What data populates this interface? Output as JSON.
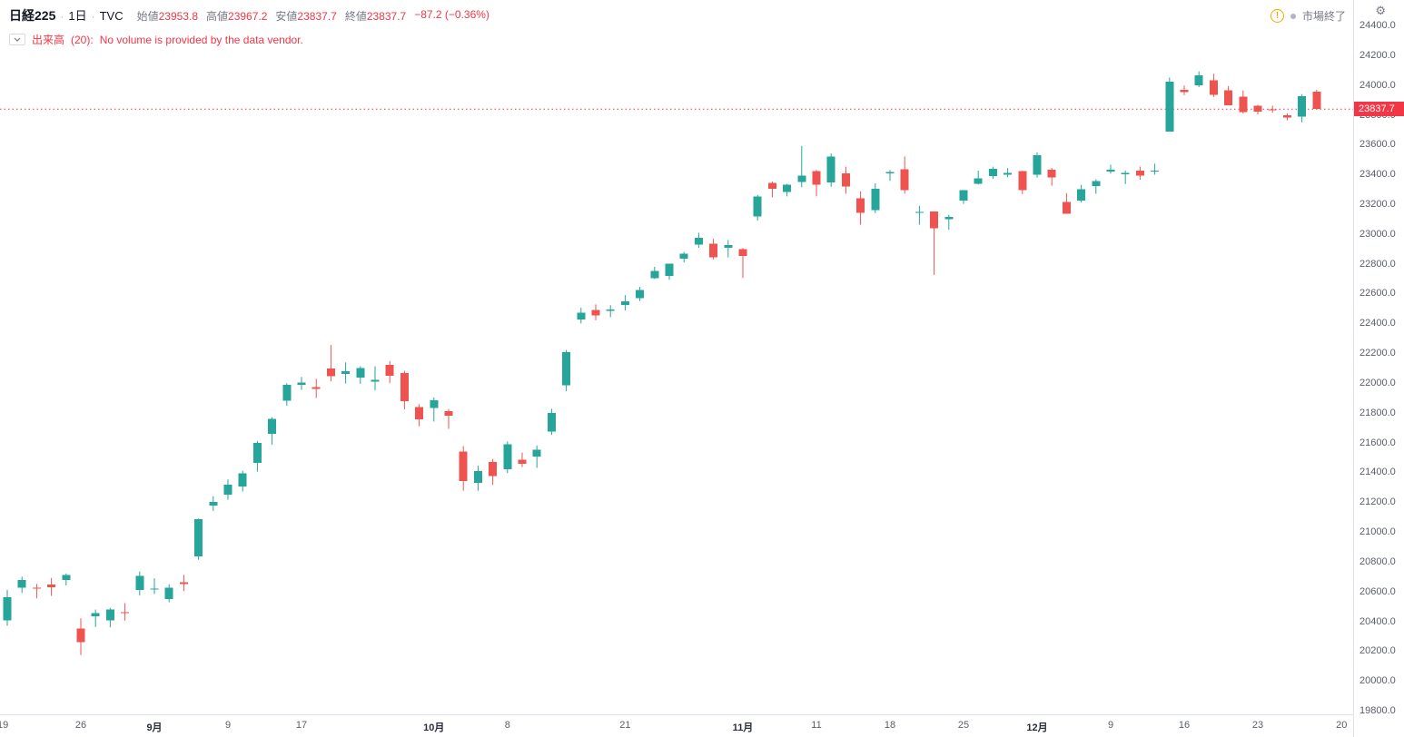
{
  "header": {
    "symbol": "日経225",
    "sep": "·",
    "interval": "1日",
    "exchange": "TVC",
    "ohlc": [
      {
        "label": "始値",
        "value": "23953.8"
      },
      {
        "label": "高値",
        "value": "23967.2"
      },
      {
        "label": "安値",
        "value": "23837.7"
      },
      {
        "label": "終値",
        "value": "23837.7"
      }
    ],
    "change": "−87.2 (−0.36%)",
    "market_status": "市場終了"
  },
  "indicator": {
    "label": "出来高",
    "params": "(20):",
    "message": "No volume is provided by the data vendor."
  },
  "price_label": "23837.7",
  "icons": {
    "warning": "!",
    "gear": "⚙"
  },
  "colors": {
    "up": "#26a69a",
    "down": "#ef5350",
    "text_down": "#f23645",
    "axis_text": "#5a5e6b",
    "badge_bg": "#f23645",
    "warning": "#f7a600"
  },
  "chart_data": {
    "type": "candlestick",
    "title": "日経225 1日 TVC",
    "y_axis": {
      "min": 19800,
      "max": 24400,
      "step": 200,
      "ticks": [
        "24400.0",
        "24200.0",
        "24000.0",
        "23800.0",
        "23600.0",
        "23400.0",
        "23200.0",
        "23000.0",
        "22800.0",
        "22600.0",
        "22400.0",
        "22200.0",
        "22000.0",
        "21800.0",
        "21600.0",
        "21400.0",
        "21200.0",
        "21000.0",
        "20800.0",
        "20600.0",
        "20400.0",
        "20200.0",
        "20000.0",
        "19800.0"
      ]
    },
    "x_ticks": [
      {
        "label": "19",
        "index": -0.3,
        "strong": false
      },
      {
        "label": "26",
        "index": 5,
        "strong": false
      },
      {
        "label": "9月",
        "index": 10,
        "strong": true
      },
      {
        "label": "9",
        "index": 15,
        "strong": false
      },
      {
        "label": "17",
        "index": 20,
        "strong": false
      },
      {
        "label": "10月",
        "index": 29,
        "strong": true
      },
      {
        "label": "8",
        "index": 34,
        "strong": false
      },
      {
        "label": "21",
        "index": 42,
        "strong": false
      },
      {
        "label": "11月",
        "index": 50,
        "strong": true
      },
      {
        "label": "11",
        "index": 55,
        "strong": false
      },
      {
        "label": "18",
        "index": 60,
        "strong": false
      },
      {
        "label": "25",
        "index": 65,
        "strong": false
      },
      {
        "label": "12月",
        "index": 70,
        "strong": true
      },
      {
        "label": "9",
        "index": 75,
        "strong": false
      },
      {
        "label": "16",
        "index": 80,
        "strong": false
      },
      {
        "label": "23",
        "index": 85,
        "strong": false
      },
      {
        "label": "20",
        "index": 90.7,
        "strong": false
      }
    ],
    "last_close": 23837.7,
    "candles": [
      [
        "2019-08-19",
        20405,
        20611,
        20370,
        20563
      ],
      [
        "2019-08-20",
        20625,
        20699,
        20590,
        20677
      ],
      [
        "2019-08-21",
        20625,
        20651,
        20554,
        20618
      ],
      [
        "2019-08-22",
        20647,
        20691,
        20570,
        20628
      ],
      [
        "2019-08-23",
        20677,
        20721,
        20641,
        20711
      ],
      [
        "2019-08-26",
        20351,
        20420,
        20173,
        20261
      ],
      [
        "2019-08-27",
        20432,
        20479,
        20362,
        20456
      ],
      [
        "2019-08-28",
        20406,
        20490,
        20360,
        20479
      ],
      [
        "2019-08-29",
        20462,
        20522,
        20405,
        20460
      ],
      [
        "2019-08-30",
        20609,
        20734,
        20573,
        20704
      ],
      [
        "2019-09-02",
        20620,
        20689,
        20583,
        20620
      ],
      [
        "2019-09-03",
        20550,
        20649,
        20528,
        20625
      ],
      [
        "2019-09-04",
        20662,
        20712,
        20603,
        20649
      ],
      [
        "2019-09-05",
        20836,
        21090,
        20813,
        21086
      ],
      [
        "2019-09-06",
        21177,
        21240,
        21141,
        21200
      ],
      [
        "2019-09-09",
        21250,
        21352,
        21216,
        21318
      ],
      [
        "2019-09-10",
        21305,
        21411,
        21271,
        21392
      ],
      [
        "2019-09-11",
        21464,
        21611,
        21405,
        21597
      ],
      [
        "2019-09-12",
        21659,
        21770,
        21586,
        21760
      ],
      [
        "2019-09-13",
        21880,
        21998,
        21847,
        21988
      ],
      [
        "2019-09-17",
        21988,
        22041,
        21953,
        22001
      ],
      [
        "2019-09-18",
        21972,
        22028,
        21899,
        21961
      ],
      [
        "2019-09-19",
        22098,
        22255,
        22010,
        22044
      ],
      [
        "2019-09-20",
        22060,
        22138,
        21996,
        22079
      ],
      [
        "2019-09-24",
        22035,
        22112,
        21994,
        22099
      ],
      [
        "2019-09-25",
        22008,
        22112,
        21950,
        22020
      ],
      [
        "2019-09-26",
        22121,
        22147,
        21998,
        22048
      ],
      [
        "2019-09-27",
        22068,
        22082,
        21823,
        21879
      ],
      [
        "2019-09-30",
        21837,
        21857,
        21709,
        21756
      ],
      [
        "2019-10-01",
        21831,
        21903,
        21741,
        21885
      ],
      [
        "2019-10-02",
        21810,
        21825,
        21692,
        21779
      ],
      [
        "2019-10-03",
        21538,
        21576,
        21277,
        21342
      ],
      [
        "2019-10-04",
        21329,
        21445,
        21276,
        21410
      ],
      [
        "2019-10-07",
        21468,
        21490,
        21316,
        21375
      ],
      [
        "2019-10-08",
        21421,
        21608,
        21395,
        21588
      ],
      [
        "2019-10-09",
        21486,
        21533,
        21436,
        21456
      ],
      [
        "2019-10-10",
        21507,
        21580,
        21430,
        21552
      ],
      [
        "2019-10-11",
        21672,
        21827,
        21651,
        21799
      ],
      [
        "2019-10-15",
        21985,
        22222,
        21944,
        22207
      ],
      [
        "2019-10-16",
        22427,
        22505,
        22399,
        22473
      ],
      [
        "2019-10-17",
        22490,
        22527,
        22421,
        22452
      ],
      [
        "2019-10-18",
        22483,
        22522,
        22442,
        22493
      ],
      [
        "2019-10-21",
        22524,
        22589,
        22487,
        22549
      ],
      [
        "2019-10-23",
        22568,
        22645,
        22549,
        22625
      ],
      [
        "2019-10-24",
        22702,
        22780,
        22698,
        22751
      ],
      [
        "2019-10-25",
        22717,
        22800,
        22692,
        22800
      ],
      [
        "2019-10-28",
        22834,
        22879,
        22809,
        22867
      ],
      [
        "2019-10-29",
        22929,
        23008,
        22907,
        22974
      ],
      [
        "2019-10-30",
        22936,
        22967,
        22829,
        22843
      ],
      [
        "2019-10-31",
        22907,
        22959,
        22843,
        22927
      ],
      [
        "2019-11-01",
        22898,
        22906,
        22705,
        22851
      ],
      [
        "2019-11-05",
        23118,
        23262,
        23090,
        23252
      ],
      [
        "2019-11-06",
        23343,
        23352,
        23246,
        23304
      ],
      [
        "2019-11-07",
        23283,
        23336,
        23253,
        23330
      ],
      [
        "2019-11-08",
        23350,
        23591,
        23313,
        23392
      ],
      [
        "2019-11-11",
        23422,
        23430,
        23253,
        23332
      ],
      [
        "2019-11-12",
        23345,
        23541,
        23316,
        23520
      ],
      [
        "2019-11-13",
        23407,
        23452,
        23270,
        23320
      ],
      [
        "2019-11-14",
        23240,
        23286,
        23062,
        23142
      ],
      [
        "2019-11-15",
        23160,
        23340,
        23140,
        23303
      ],
      [
        "2019-11-18",
        23407,
        23430,
        23357,
        23417
      ],
      [
        "2019-11-19",
        23433,
        23520,
        23271,
        23293
      ],
      [
        "2019-11-20",
        23148,
        23188,
        23062,
        23149
      ],
      [
        "2019-11-21",
        23151,
        23151,
        22726,
        23039
      ],
      [
        "2019-11-22",
        23100,
        23128,
        23028,
        23113
      ],
      [
        "2019-11-25",
        23224,
        23295,
        23202,
        23293
      ],
      [
        "2019-11-26",
        23337,
        23425,
        23332,
        23373
      ],
      [
        "2019-11-27",
        23390,
        23452,
        23370,
        23438
      ],
      [
        "2019-11-28",
        23398,
        23442,
        23380,
        23409
      ],
      [
        "2019-11-29",
        23422,
        23424,
        23268,
        23294
      ],
      [
        "2019-12-02",
        23397,
        23547,
        23379,
        23530
      ],
      [
        "2019-12-03",
        23430,
        23443,
        23324,
        23380
      ],
      [
        "2019-12-04",
        23214,
        23274,
        23135,
        23135
      ],
      [
        "2019-12-05",
        23225,
        23330,
        23211,
        23300
      ],
      [
        "2019-12-06",
        23322,
        23367,
        23270,
        23354
      ],
      [
        "2019-12-09",
        23420,
        23465,
        23405,
        23431
      ],
      [
        "2019-12-10",
        23400,
        23426,
        23335,
        23410
      ],
      [
        "2019-12-11",
        23425,
        23452,
        23364,
        23392
      ],
      [
        "2019-12-12",
        23425,
        23472,
        23398,
        23425
      ],
      [
        "2019-12-13",
        23687,
        24050,
        23687,
        24023
      ],
      [
        "2019-12-16",
        23966,
        23996,
        23932,
        23952
      ],
      [
        "2019-12-17",
        23998,
        24091,
        23986,
        24066
      ],
      [
        "2019-12-18",
        24031,
        24075,
        23920,
        23934
      ],
      [
        "2019-12-19",
        23963,
        23993,
        23864,
        23865
      ],
      [
        "2019-12-20",
        23922,
        23963,
        23808,
        23817
      ],
      [
        "2019-12-23",
        23860,
        23866,
        23803,
        23821
      ],
      [
        "2019-12-24",
        23835,
        23861,
        23815,
        23831
      ],
      [
        "2019-12-25",
        23797,
        23810,
        23763,
        23783
      ],
      [
        "2019-12-26",
        23788,
        23939,
        23749,
        23925
      ],
      [
        "2019-12-27",
        23954,
        23967,
        23838,
        23838
      ]
    ],
    "up_color": "#26a69a",
    "down_color": "#ef5350",
    "grid": false,
    "price_line": {
      "style": "dotted",
      "color": "#f23645"
    }
  }
}
